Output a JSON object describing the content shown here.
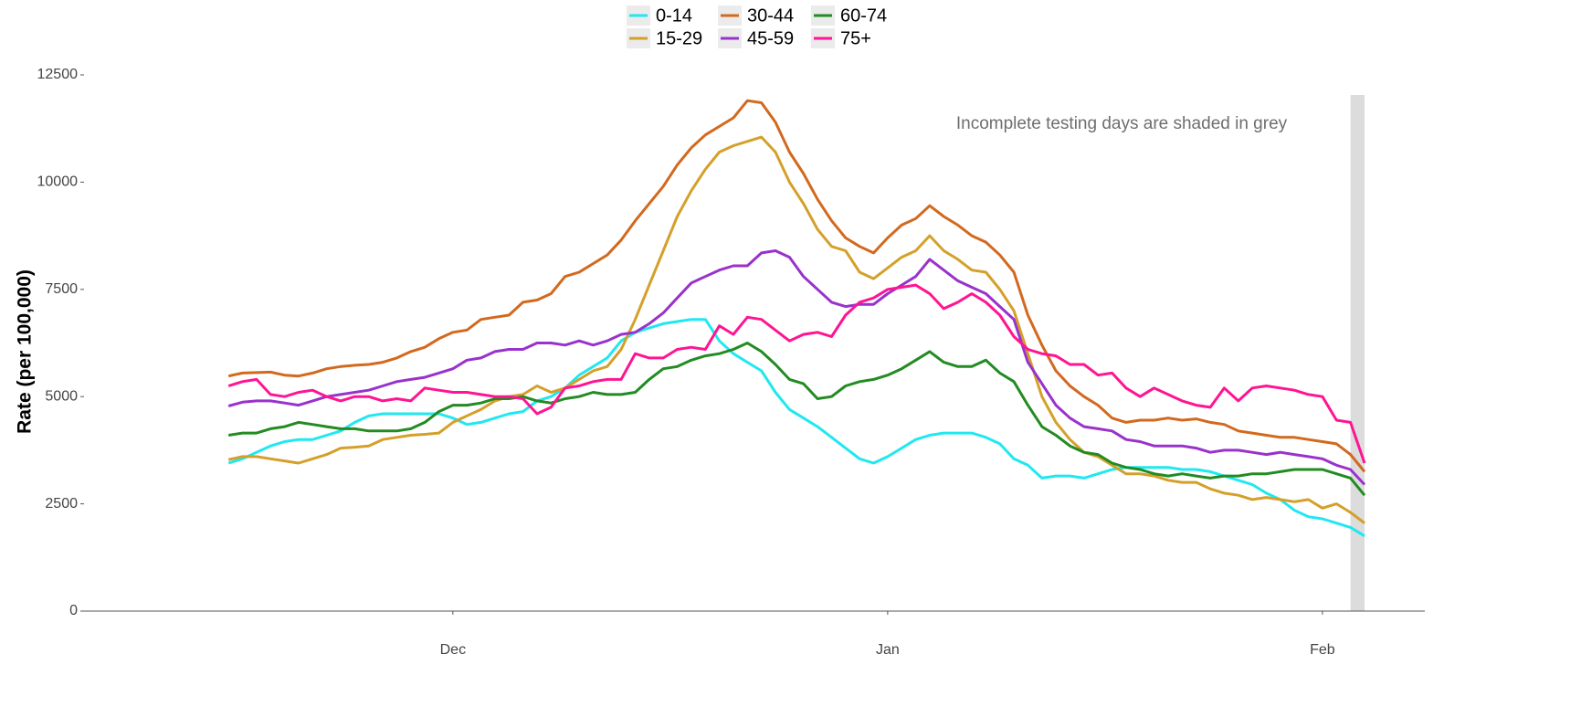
{
  "chart_data": {
    "type": "line",
    "y_label": "Rate (per 100,000)",
    "annotation": "Incomplete testing days are shaded in grey",
    "shade": [
      80,
      81
    ],
    "shade_color": "#dcdcdc",
    "x": [
      0,
      1,
      2,
      3,
      4,
      5,
      6,
      7,
      8,
      9,
      10,
      11,
      12,
      13,
      14,
      15,
      16,
      17,
      18,
      19,
      20,
      21,
      22,
      23,
      24,
      25,
      26,
      27,
      28,
      29,
      30,
      31,
      32,
      33,
      34,
      35,
      36,
      37,
      38,
      39,
      40,
      41,
      42,
      43,
      44,
      45,
      46,
      47,
      48,
      49,
      50,
      51,
      52,
      53,
      54,
      55,
      56,
      57,
      58,
      59,
      60,
      61,
      62,
      63,
      64,
      65,
      66,
      67,
      68,
      69,
      70,
      71,
      72,
      73,
      74,
      75,
      76,
      77,
      78,
      79,
      80,
      81
    ],
    "xlim": [
      -10.3,
      85.3
    ],
    "xticks": [
      {
        "value": 16,
        "label": "Dec"
      },
      {
        "value": 47,
        "label": "Jan"
      },
      {
        "value": 78,
        "label": "Feb"
      }
    ],
    "ylim": [
      0,
      12500
    ],
    "yticks": [
      0,
      2500,
      5000,
      7500,
      10000,
      12500
    ],
    "grid": false,
    "legend": "top",
    "series": [
      {
        "name": "0-14",
        "color": "#1fe8f0",
        "values": [
          3450,
          3550,
          3700,
          3850,
          3950,
          4000,
          4000,
          4100,
          4200,
          4400,
          4550,
          4600,
          4600,
          4600,
          4600,
          4600,
          4500,
          4350,
          4400,
          4500,
          4600,
          4650,
          4900,
          5000,
          5200,
          5500,
          5700,
          5900,
          6300,
          6500,
          6600,
          6700,
          6750,
          6800,
          6800,
          6300,
          6000,
          5800,
          5600,
          5100,
          4700,
          4500,
          4300,
          4050,
          3800,
          3550,
          3450,
          3600,
          3800,
          4000,
          4100,
          4150,
          4150,
          4150,
          4050,
          3900,
          3550,
          3400,
          3100,
          3150,
          3150,
          3100,
          3200,
          3300,
          3350,
          3350,
          3350,
          3350,
          3300,
          3300,
          3250,
          3150,
          3050,
          2950,
          2750,
          2600,
          2350,
          2200,
          2150,
          2050,
          1950,
          1750
        ]
      },
      {
        "name": "15-29",
        "color": "#d4a02a",
        "values": [
          3530,
          3600,
          3600,
          3550,
          3500,
          3450,
          3550,
          3650,
          3800,
          3820,
          3850,
          4000,
          4050,
          4100,
          4120,
          4150,
          4400,
          4550,
          4700,
          4900,
          5000,
          5050,
          5250,
          5100,
          5200,
          5400,
          5600,
          5700,
          6100,
          6800,
          7600,
          8400,
          9200,
          9800,
          10300,
          10700,
          10850,
          10950,
          11050,
          10700,
          10000,
          9500,
          8900,
          8500,
          8400,
          7900,
          7750,
          8000,
          8250,
          8400,
          8750,
          8400,
          8200,
          7950,
          7900,
          7500,
          7000,
          6000,
          5000,
          4400,
          4000,
          3700,
          3600,
          3400,
          3200,
          3200,
          3150,
          3050,
          3000,
          3000,
          2850,
          2750,
          2700,
          2600,
          2650,
          2600,
          2550,
          2600,
          2400,
          2500,
          2300,
          2050
        ]
      },
      {
        "name": "30-44",
        "color": "#d2691e",
        "values": [
          5480,
          5550,
          5560,
          5570,
          5500,
          5480,
          5550,
          5650,
          5700,
          5730,
          5750,
          5800,
          5900,
          6050,
          6150,
          6350,
          6500,
          6550,
          6800,
          6850,
          6900,
          7200,
          7250,
          7400,
          7800,
          7900,
          8100,
          8300,
          8650,
          9100,
          9500,
          9900,
          10400,
          10800,
          11100,
          11300,
          11500,
          11900,
          11850,
          11400,
          10700,
          10200,
          9600,
          9100,
          8700,
          8500,
          8350,
          8700,
          9000,
          9150,
          9450,
          9200,
          9000,
          8750,
          8600,
          8300,
          7900,
          6900,
          6200,
          5600,
          5250,
          5000,
          4800,
          4500,
          4400,
          4450,
          4450,
          4500,
          4450,
          4480,
          4400,
          4350,
          4200,
          4150,
          4100,
          4050,
          4050,
          4000,
          3950,
          3900,
          3650,
          3250
        ]
      },
      {
        "name": "45-59",
        "color": "#9932cc",
        "values": [
          4780,
          4870,
          4900,
          4900,
          4850,
          4800,
          4900,
          5000,
          5050,
          5100,
          5150,
          5250,
          5350,
          5400,
          5450,
          5550,
          5650,
          5850,
          5900,
          6050,
          6100,
          6100,
          6250,
          6250,
          6200,
          6300,
          6200,
          6300,
          6450,
          6500,
          6700,
          6950,
          7300,
          7650,
          7800,
          7950,
          8050,
          8050,
          8350,
          8400,
          8250,
          7800,
          7500,
          7200,
          7100,
          7150,
          7150,
          7400,
          7600,
          7800,
          8200,
          7950,
          7700,
          7550,
          7400,
          7100,
          6800,
          5800,
          5300,
          4800,
          4500,
          4300,
          4250,
          4200,
          4000,
          3950,
          3850,
          3850,
          3850,
          3800,
          3700,
          3750,
          3750,
          3700,
          3650,
          3700,
          3650,
          3600,
          3550,
          3400,
          3300,
          2950
        ]
      },
      {
        "name": "60-74",
        "color": "#228b22",
        "values": [
          4100,
          4150,
          4150,
          4250,
          4300,
          4400,
          4350,
          4300,
          4250,
          4250,
          4200,
          4200,
          4200,
          4250,
          4400,
          4650,
          4800,
          4800,
          4850,
          4950,
          4950,
          5000,
          4900,
          4850,
          4950,
          5000,
          5100,
          5050,
          5050,
          5100,
          5400,
          5650,
          5700,
          5850,
          5950,
          6000,
          6100,
          6250,
          6050,
          5750,
          5400,
          5300,
          4950,
          5000,
          5250,
          5350,
          5400,
          5500,
          5650,
          5850,
          6050,
          5800,
          5700,
          5700,
          5850,
          5550,
          5350,
          4800,
          4300,
          4100,
          3850,
          3700,
          3650,
          3450,
          3350,
          3300,
          3200,
          3150,
          3200,
          3150,
          3100,
          3150,
          3150,
          3200,
          3200,
          3250,
          3300,
          3300,
          3300,
          3200,
          3100,
          2700
        ]
      },
      {
        "name": "75+",
        "color": "#ff1493",
        "values": [
          5250,
          5350,
          5400,
          5050,
          5000,
          5100,
          5150,
          5000,
          4900,
          5000,
          5000,
          4900,
          4950,
          4900,
          5200,
          5150,
          5100,
          5100,
          5050,
          5000,
          5000,
          4950,
          4600,
          4750,
          5200,
          5250,
          5350,
          5400,
          5400,
          6000,
          5900,
          5900,
          6100,
          6150,
          6100,
          6650,
          6450,
          6850,
          6800,
          6550,
          6300,
          6450,
          6500,
          6400,
          6900,
          7200,
          7300,
          7500,
          7550,
          7600,
          7400,
          7050,
          7200,
          7400,
          7200,
          6900,
          6400,
          6100,
          6000,
          5950,
          5750,
          5750,
          5500,
          5550,
          5200,
          5000,
          5200,
          5050,
          4900,
          4800,
          4750,
          5200,
          4900,
          5200,
          5250,
          5200,
          5150,
          5050,
          5000,
          4450,
          4400,
          3450
        ]
      }
    ]
  }
}
